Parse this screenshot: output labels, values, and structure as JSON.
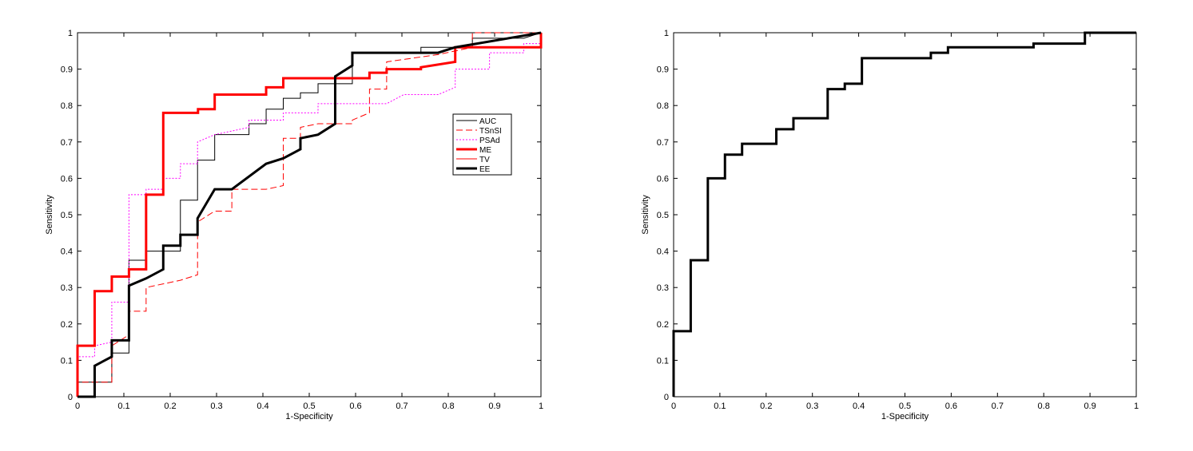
{
  "chart_data": [
    {
      "type": "line",
      "xlabel": "1-Specificity",
      "ylabel": "Sensitivity",
      "xlim": [
        0,
        1
      ],
      "ylim": [
        0,
        1
      ],
      "xticks": [
        0,
        0.1,
        0.2,
        0.3,
        0.4,
        0.5,
        0.6,
        0.7,
        0.8,
        0.9,
        1
      ],
      "yticks": [
        0,
        0.1,
        0.2,
        0.3,
        0.4,
        0.5,
        0.6,
        0.7,
        0.8,
        0.9,
        1
      ],
      "legend": "east",
      "series": [
        {
          "name": "AUC",
          "color": "#000000",
          "width": 1,
          "dash": "solid",
          "x": [
            0,
            0,
            0.074,
            0.074,
            0.111,
            0.111,
            0.148,
            0.148,
            0.222,
            0.222,
            0.259,
            0.259,
            0.296,
            0.296,
            0.37,
            0.37,
            0.407,
            0.407,
            0.444,
            0.444,
            0.481,
            0.481,
            0.519,
            0.519,
            0.593,
            0.593,
            0.741,
            0.741,
            0.852,
            0.852,
            0.963,
            1
          ],
          "values": [
            0,
            0.04,
            0.04,
            0.12,
            0.12,
            0.375,
            0.375,
            0.4,
            0.4,
            0.54,
            0.54,
            0.65,
            0.65,
            0.72,
            0.72,
            0.75,
            0.75,
            0.79,
            0.79,
            0.82,
            0.82,
            0.835,
            0.835,
            0.86,
            0.86,
            0.945,
            0.945,
            0.96,
            0.96,
            0.985,
            0.985,
            1
          ]
        },
        {
          "name": "TSnSI",
          "color": "#ff0000",
          "width": 1,
          "dash": "dashed",
          "x": [
            0,
            0,
            0.074,
            0.074,
            0.111,
            0.111,
            0.148,
            0.148,
            0.185,
            0.222,
            0.259,
            0.259,
            0.296,
            0.333,
            0.333,
            0.407,
            0.444,
            0.444,
            0.481,
            0.481,
            0.519,
            0.593,
            0.593,
            0.63,
            0.63,
            0.667,
            0.667,
            0.778,
            0.852,
            0.852,
            1
          ],
          "values": [
            0,
            0.04,
            0.04,
            0.14,
            0.17,
            0.235,
            0.235,
            0.3,
            0.31,
            0.32,
            0.335,
            0.48,
            0.51,
            0.51,
            0.57,
            0.57,
            0.58,
            0.71,
            0.71,
            0.74,
            0.75,
            0.75,
            0.76,
            0.78,
            0.845,
            0.845,
            0.92,
            0.94,
            0.96,
            1,
            1
          ]
        },
        {
          "name": "PSAd",
          "color": "#ff00ff",
          "width": 1,
          "dash": "dotted",
          "x": [
            0,
            0,
            0.037,
            0.037,
            0.074,
            0.074,
            0.111,
            0.111,
            0.148,
            0.148,
            0.185,
            0.185,
            0.222,
            0.222,
            0.259,
            0.259,
            0.296,
            0.37,
            0.37,
            0.444,
            0.444,
            0.519,
            0.519,
            0.667,
            0.704,
            0.778,
            0.815,
            0.815,
            0.889,
            0.889,
            0.963,
            0.963,
            1
          ],
          "values": [
            0,
            0.11,
            0.11,
            0.14,
            0.15,
            0.26,
            0.26,
            0.555,
            0.555,
            0.57,
            0.57,
            0.6,
            0.6,
            0.64,
            0.64,
            0.7,
            0.72,
            0.74,
            0.76,
            0.76,
            0.78,
            0.78,
            0.805,
            0.805,
            0.83,
            0.83,
            0.85,
            0.9,
            0.9,
            0.945,
            0.945,
            0.97,
            0.97
          ]
        },
        {
          "name": "ME",
          "color": "#ff0000",
          "width": 3,
          "dash": "solid",
          "x": [
            0,
            0,
            0.037,
            0.037,
            0.074,
            0.074,
            0.111,
            0.111,
            0.148,
            0.148,
            0.185,
            0.185,
            0.26,
            0.26,
            0.296,
            0.296,
            0.407,
            0.407,
            0.444,
            0.444,
            0.63,
            0.63,
            0.667,
            0.667,
            0.741,
            0.741,
            0.815,
            0.815,
            1,
            1
          ],
          "values": [
            0,
            0.14,
            0.14,
            0.29,
            0.29,
            0.33,
            0.33,
            0.35,
            0.35,
            0.555,
            0.555,
            0.78,
            0.78,
            0.79,
            0.79,
            0.83,
            0.83,
            0.85,
            0.85,
            0.875,
            0.875,
            0.89,
            0.89,
            0.9,
            0.9,
            0.905,
            0.92,
            0.96,
            0.96,
            1
          ]
        },
        {
          "name": "TV",
          "color": "#ff0000",
          "width": 1,
          "dash": "solid",
          "x": [],
          "values": []
        },
        {
          "name": "EE",
          "color": "#000000",
          "width": 3,
          "dash": "solid",
          "x": [
            0,
            0.037,
            0.037,
            0.074,
            0.074,
            0.111,
            0.111,
            0.148,
            0.185,
            0.185,
            0.222,
            0.222,
            0.259,
            0.259,
            0.296,
            0.333,
            0.407,
            0.444,
            0.481,
            0.481,
            0.519,
            0.556,
            0.556,
            0.593,
            0.593,
            0.778,
            0.815,
            1
          ],
          "values": [
            0,
            0,
            0.085,
            0.11,
            0.155,
            0.155,
            0.305,
            0.325,
            0.35,
            0.415,
            0.415,
            0.445,
            0.445,
            0.49,
            0.57,
            0.57,
            0.64,
            0.655,
            0.68,
            0.71,
            0.72,
            0.75,
            0.88,
            0.91,
            0.945,
            0.945,
            0.96,
            1
          ]
        }
      ]
    },
    {
      "type": "line",
      "xlabel": "1-Specificity",
      "ylabel": "Sensitivity",
      "xlim": [
        0,
        1
      ],
      "ylim": [
        0,
        1
      ],
      "xticks": [
        0,
        0.1,
        0.2,
        0.3,
        0.4,
        0.5,
        0.6,
        0.7,
        0.8,
        0.9,
        1
      ],
      "yticks": [
        0,
        0.1,
        0.2,
        0.3,
        0.4,
        0.5,
        0.6,
        0.7,
        0.8,
        0.9,
        1
      ],
      "series": [
        {
          "color": "#000000",
          "width": 3,
          "dash": "solid",
          "x": [
            0,
            0,
            0.037,
            0.037,
            0.074,
            0.074,
            0.111,
            0.111,
            0.148,
            0.148,
            0.222,
            0.222,
            0.259,
            0.259,
            0.333,
            0.333,
            0.37,
            0.37,
            0.407,
            0.407,
            0.556,
            0.556,
            0.593,
            0.593,
            0.778,
            0.778,
            0.889,
            0.889,
            1
          ],
          "values": [
            0,
            0.18,
            0.18,
            0.375,
            0.375,
            0.6,
            0.6,
            0.665,
            0.665,
            0.695,
            0.695,
            0.735,
            0.735,
            0.765,
            0.765,
            0.845,
            0.845,
            0.86,
            0.86,
            0.93,
            0.93,
            0.945,
            0.945,
            0.96,
            0.96,
            0.97,
            0.97,
            1,
            1
          ]
        }
      ]
    }
  ]
}
